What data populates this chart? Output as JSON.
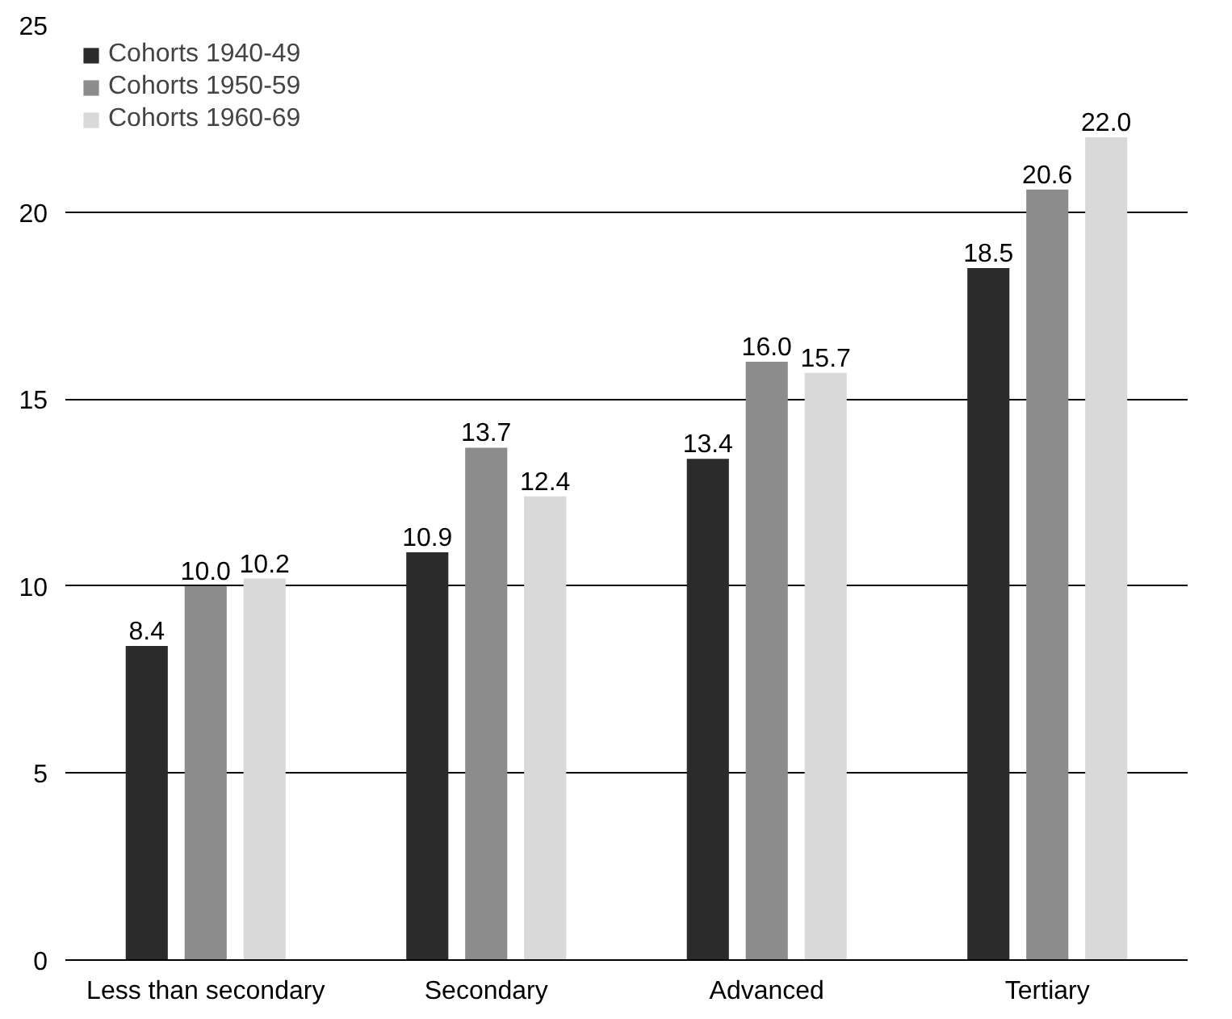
{
  "chart_data": {
    "type": "bar",
    "categories": [
      "Less than secondary",
      "Secondary",
      "Advanced",
      "Tertiary"
    ],
    "series": [
      {
        "name": "Cohorts 1940-49",
        "color": "#2b2b2b",
        "values": [
          8.4,
          10.9,
          13.4,
          18.5
        ],
        "value_labels": [
          "8.4",
          "10.9",
          "13.4",
          "18.5"
        ]
      },
      {
        "name": "Cohorts 1950-59",
        "color": "#8c8c8d",
        "values": [
          10.0,
          13.7,
          16.0,
          20.6
        ],
        "value_labels": [
          "10.0",
          "13.7",
          "16.0",
          "20.6"
        ]
      },
      {
        "name": "Cohorts 1960-69",
        "color": "#d9d9da",
        "values": [
          10.2,
          12.4,
          15.7,
          22.0
        ],
        "value_labels": [
          "10.2",
          "12.4",
          "15.7",
          "22.0"
        ]
      }
    ],
    "ylim": [
      0,
      25
    ],
    "yticks": [
      0,
      5,
      10,
      15,
      20,
      25
    ],
    "grid": "y",
    "legend": "top left"
  }
}
